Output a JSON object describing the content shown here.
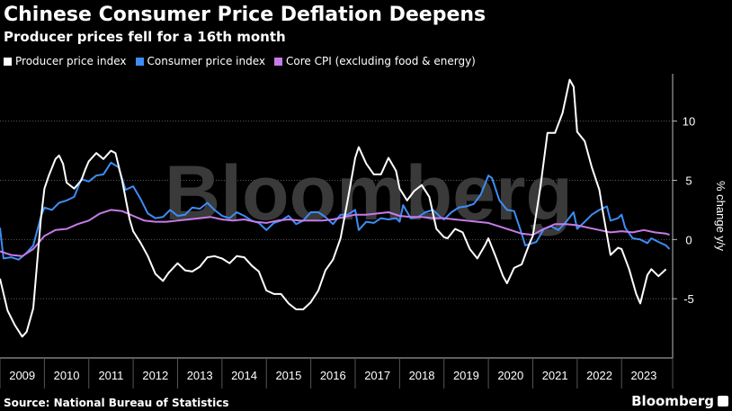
{
  "header": {
    "title": "Chinese Consumer Price Deflation Deepens",
    "subtitle": "Producer prices fell for a 16th month"
  },
  "footer": {
    "source": "Source: National Bureau of Statistics",
    "brand": "Bloomberg",
    "watermark": "Bloomberg"
  },
  "chart_data": {
    "type": "line",
    "ylabel": "% change y/y",
    "ylim": [
      -10,
      14
    ],
    "yticks": [
      -5,
      0,
      5,
      10
    ],
    "xlim": [
      2009.0,
      2024.15
    ],
    "years": [
      "2009",
      "2010",
      "2011",
      "2012",
      "2013",
      "2014",
      "2015",
      "2016",
      "2017",
      "2018",
      "2019",
      "2020",
      "2021",
      "2022",
      "2023"
    ],
    "grid": true,
    "legend_position": "top-left",
    "series": [
      {
        "name": "Producer price index",
        "color": "#ffffff",
        "points": [
          [
            2009.0,
            -3.3
          ],
          [
            2009.17,
            -6.0
          ],
          [
            2009.33,
            -7.2
          ],
          [
            2009.5,
            -8.2
          ],
          [
            2009.6,
            -7.8
          ],
          [
            2009.75,
            -5.8
          ],
          [
            2009.92,
            1.7
          ],
          [
            2010.0,
            4.3
          ],
          [
            2010.1,
            5.4
          ],
          [
            2010.25,
            6.8
          ],
          [
            2010.33,
            7.1
          ],
          [
            2010.42,
            6.4
          ],
          [
            2010.5,
            4.8
          ],
          [
            2010.67,
            4.3
          ],
          [
            2010.83,
            5.0
          ],
          [
            2010.92,
            5.9
          ],
          [
            2011.0,
            6.6
          ],
          [
            2011.17,
            7.3
          ],
          [
            2011.33,
            6.8
          ],
          [
            2011.5,
            7.5
          ],
          [
            2011.6,
            7.3
          ],
          [
            2011.75,
            5.0
          ],
          [
            2011.92,
            1.7
          ],
          [
            2012.0,
            0.7
          ],
          [
            2012.17,
            -0.3
          ],
          [
            2012.33,
            -1.4
          ],
          [
            2012.5,
            -2.9
          ],
          [
            2012.67,
            -3.5
          ],
          [
            2012.8,
            -2.8
          ],
          [
            2013.0,
            -2.0
          ],
          [
            2013.17,
            -2.6
          ],
          [
            2013.33,
            -2.7
          ],
          [
            2013.5,
            -2.3
          ],
          [
            2013.67,
            -1.5
          ],
          [
            2013.83,
            -1.4
          ],
          [
            2014.0,
            -1.6
          ],
          [
            2014.17,
            -2.0
          ],
          [
            2014.33,
            -1.4
          ],
          [
            2014.5,
            -1.5
          ],
          [
            2014.67,
            -2.2
          ],
          [
            2014.83,
            -2.7
          ],
          [
            2015.0,
            -4.3
          ],
          [
            2015.17,
            -4.6
          ],
          [
            2015.33,
            -4.6
          ],
          [
            2015.5,
            -5.4
          ],
          [
            2015.67,
            -5.9
          ],
          [
            2015.83,
            -5.9
          ],
          [
            2016.0,
            -5.3
          ],
          [
            2016.17,
            -4.3
          ],
          [
            2016.33,
            -2.6
          ],
          [
            2016.5,
            -1.7
          ],
          [
            2016.67,
            0.1
          ],
          [
            2016.83,
            3.3
          ],
          [
            2017.0,
            6.9
          ],
          [
            2017.08,
            7.8
          ],
          [
            2017.25,
            6.4
          ],
          [
            2017.42,
            5.5
          ],
          [
            2017.58,
            5.5
          ],
          [
            2017.75,
            6.9
          ],
          [
            2017.92,
            5.8
          ],
          [
            2018.0,
            4.3
          ],
          [
            2018.17,
            3.3
          ],
          [
            2018.33,
            4.1
          ],
          [
            2018.5,
            4.6
          ],
          [
            2018.67,
            3.6
          ],
          [
            2018.83,
            0.9
          ],
          [
            2019.0,
            0.2
          ],
          [
            2019.08,
            0.1
          ],
          [
            2019.25,
            0.9
          ],
          [
            2019.42,
            0.6
          ],
          [
            2019.58,
            -0.8
          ],
          [
            2019.75,
            -1.6
          ],
          [
            2019.92,
            -0.5
          ],
          [
            2020.0,
            0.1
          ],
          [
            2020.17,
            -1.5
          ],
          [
            2020.33,
            -3.1
          ],
          [
            2020.42,
            -3.7
          ],
          [
            2020.58,
            -2.4
          ],
          [
            2020.75,
            -2.1
          ],
          [
            2020.92,
            -0.4
          ],
          [
            2021.0,
            0.3
          ],
          [
            2021.17,
            4.4
          ],
          [
            2021.33,
            9.0
          ],
          [
            2021.5,
            9.0
          ],
          [
            2021.67,
            10.7
          ],
          [
            2021.83,
            13.5
          ],
          [
            2021.92,
            12.9
          ],
          [
            2022.0,
            9.1
          ],
          [
            2022.17,
            8.3
          ],
          [
            2022.33,
            6.1
          ],
          [
            2022.5,
            4.2
          ],
          [
            2022.58,
            2.3
          ],
          [
            2022.75,
            -1.3
          ],
          [
            2022.92,
            -0.7
          ],
          [
            2023.0,
            -0.8
          ],
          [
            2023.17,
            -2.5
          ],
          [
            2023.33,
            -4.6
          ],
          [
            2023.42,
            -5.4
          ],
          [
            2023.58,
            -3.0
          ],
          [
            2023.67,
            -2.5
          ],
          [
            2023.83,
            -3.1
          ],
          [
            2024.0,
            -2.5
          ]
        ]
      },
      {
        "name": "Consumer price index",
        "color": "#3d8df5",
        "points": [
          [
            2009.0,
            1.0
          ],
          [
            2009.08,
            -1.6
          ],
          [
            2009.25,
            -1.5
          ],
          [
            2009.42,
            -1.7
          ],
          [
            2009.58,
            -1.2
          ],
          [
            2009.75,
            -0.5
          ],
          [
            2009.92,
            1.9
          ],
          [
            2010.0,
            2.7
          ],
          [
            2010.17,
            2.5
          ],
          [
            2010.33,
            3.1
          ],
          [
            2010.5,
            3.3
          ],
          [
            2010.67,
            3.6
          ],
          [
            2010.83,
            5.1
          ],
          [
            2011.0,
            4.9
          ],
          [
            2011.17,
            5.4
          ],
          [
            2011.33,
            5.5
          ],
          [
            2011.5,
            6.5
          ],
          [
            2011.67,
            6.1
          ],
          [
            2011.83,
            4.2
          ],
          [
            2012.0,
            4.5
          ],
          [
            2012.17,
            3.4
          ],
          [
            2012.33,
            2.2
          ],
          [
            2012.5,
            1.8
          ],
          [
            2012.67,
            1.9
          ],
          [
            2012.83,
            2.5
          ],
          [
            2013.0,
            2.0
          ],
          [
            2013.17,
            2.1
          ],
          [
            2013.33,
            2.7
          ],
          [
            2013.5,
            2.6
          ],
          [
            2013.67,
            3.1
          ],
          [
            2013.83,
            2.5
          ],
          [
            2014.0,
            2.0
          ],
          [
            2014.17,
            1.8
          ],
          [
            2014.33,
            2.3
          ],
          [
            2014.5,
            2.0
          ],
          [
            2014.67,
            1.6
          ],
          [
            2014.83,
            1.4
          ],
          [
            2015.0,
            0.8
          ],
          [
            2015.17,
            1.4
          ],
          [
            2015.33,
            1.6
          ],
          [
            2015.5,
            2.0
          ],
          [
            2015.67,
            1.3
          ],
          [
            2015.83,
            1.6
          ],
          [
            2016.0,
            2.3
          ],
          [
            2016.17,
            2.3
          ],
          [
            2016.33,
            1.9
          ],
          [
            2016.5,
            1.3
          ],
          [
            2016.67,
            2.1
          ],
          [
            2016.83,
            2.1
          ],
          [
            2017.0,
            2.5
          ],
          [
            2017.08,
            0.8
          ],
          [
            2017.25,
            1.5
          ],
          [
            2017.42,
            1.4
          ],
          [
            2017.58,
            1.8
          ],
          [
            2017.75,
            1.7
          ],
          [
            2017.92,
            1.8
          ],
          [
            2018.0,
            1.5
          ],
          [
            2018.08,
            2.9
          ],
          [
            2018.25,
            1.8
          ],
          [
            2018.42,
            1.9
          ],
          [
            2018.58,
            2.3
          ],
          [
            2018.75,
            2.5
          ],
          [
            2018.92,
            1.9
          ],
          [
            2019.0,
            1.7
          ],
          [
            2019.17,
            2.3
          ],
          [
            2019.33,
            2.7
          ],
          [
            2019.5,
            2.8
          ],
          [
            2019.67,
            3.0
          ],
          [
            2019.83,
            3.8
          ],
          [
            2020.0,
            5.4
          ],
          [
            2020.08,
            5.2
          ],
          [
            2020.25,
            3.3
          ],
          [
            2020.42,
            2.5
          ],
          [
            2020.58,
            2.4
          ],
          [
            2020.75,
            0.5
          ],
          [
            2020.83,
            -0.5
          ],
          [
            2021.0,
            -0.3
          ],
          [
            2021.08,
            -0.2
          ],
          [
            2021.25,
            0.9
          ],
          [
            2021.42,
            1.1
          ],
          [
            2021.58,
            0.8
          ],
          [
            2021.75,
            1.5
          ],
          [
            2021.92,
            2.3
          ],
          [
            2022.0,
            0.9
          ],
          [
            2022.17,
            1.5
          ],
          [
            2022.33,
            2.1
          ],
          [
            2022.5,
            2.5
          ],
          [
            2022.67,
            2.8
          ],
          [
            2022.75,
            1.6
          ],
          [
            2022.92,
            1.8
          ],
          [
            2023.0,
            2.1
          ],
          [
            2023.08,
            1.0
          ],
          [
            2023.25,
            0.1
          ],
          [
            2023.42,
            0.0
          ],
          [
            2023.58,
            -0.3
          ],
          [
            2023.67,
            0.1
          ],
          [
            2023.83,
            -0.2
          ],
          [
            2024.0,
            -0.5
          ],
          [
            2024.08,
            -0.8
          ]
        ]
      },
      {
        "name": "Core CPI (excluding food & energy)",
        "color": "#c77be8",
        "points": [
          [
            2009.0,
            -1.0
          ],
          [
            2009.25,
            -1.3
          ],
          [
            2009.5,
            -1.4
          ],
          [
            2009.75,
            -0.8
          ],
          [
            2010.0,
            0.3
          ],
          [
            2010.25,
            0.8
          ],
          [
            2010.5,
            0.9
          ],
          [
            2010.75,
            1.3
          ],
          [
            2011.0,
            1.6
          ],
          [
            2011.25,
            2.2
          ],
          [
            2011.5,
            2.5
          ],
          [
            2011.75,
            2.4
          ],
          [
            2012.0,
            2.0
          ],
          [
            2012.25,
            1.6
          ],
          [
            2012.5,
            1.5
          ],
          [
            2012.75,
            1.5
          ],
          [
            2013.0,
            1.6
          ],
          [
            2013.25,
            1.7
          ],
          [
            2013.5,
            1.8
          ],
          [
            2013.75,
            1.9
          ],
          [
            2014.0,
            1.7
          ],
          [
            2014.25,
            1.6
          ],
          [
            2014.5,
            1.7
          ],
          [
            2014.75,
            1.5
          ],
          [
            2015.0,
            1.4
          ],
          [
            2015.25,
            1.6
          ],
          [
            2015.5,
            1.7
          ],
          [
            2015.75,
            1.6
          ],
          [
            2016.0,
            1.6
          ],
          [
            2016.25,
            1.6
          ],
          [
            2016.5,
            1.7
          ],
          [
            2016.75,
            1.9
          ],
          [
            2017.0,
            2.1
          ],
          [
            2017.25,
            2.1
          ],
          [
            2017.5,
            2.2
          ],
          [
            2017.75,
            2.3
          ],
          [
            2018.0,
            2.0
          ],
          [
            2018.25,
            1.9
          ],
          [
            2018.5,
            1.9
          ],
          [
            2018.75,
            1.8
          ],
          [
            2019.0,
            1.8
          ],
          [
            2019.25,
            1.7
          ],
          [
            2019.5,
            1.6
          ],
          [
            2019.75,
            1.5
          ],
          [
            2020.0,
            1.4
          ],
          [
            2020.25,
            1.1
          ],
          [
            2020.5,
            0.8
          ],
          [
            2020.75,
            0.5
          ],
          [
            2021.0,
            0.4
          ],
          [
            2021.25,
            0.9
          ],
          [
            2021.5,
            1.3
          ],
          [
            2021.75,
            1.3
          ],
          [
            2022.0,
            1.2
          ],
          [
            2022.25,
            1.0
          ],
          [
            2022.5,
            0.8
          ],
          [
            2022.75,
            0.6
          ],
          [
            2023.0,
            0.7
          ],
          [
            2023.25,
            0.6
          ],
          [
            2023.5,
            0.8
          ],
          [
            2023.75,
            0.6
          ],
          [
            2024.0,
            0.5
          ],
          [
            2024.08,
            0.4
          ]
        ]
      }
    ]
  }
}
